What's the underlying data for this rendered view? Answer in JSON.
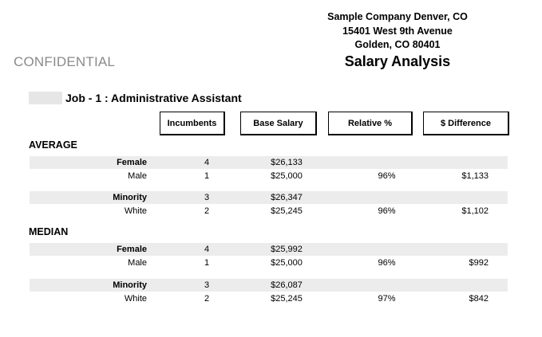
{
  "header": {
    "company_lines": [
      "Sample Company Denver, CO",
      "15401 West 9th Avenue",
      "Golden, CO 80401"
    ],
    "confidential": "CONFIDENTIAL",
    "title": "Salary Analysis"
  },
  "job": {
    "title": "Job - 1 : Administrative Assistant"
  },
  "columns": [
    "Incumbents",
    "Base Salary",
    "Relative %",
    "$ Difference"
  ],
  "sections": [
    {
      "title": "AVERAGE",
      "groups": [
        {
          "primary": {
            "label": "Female",
            "incumbents": "4",
            "base_salary": "$26,133"
          },
          "compare": {
            "label": "Male",
            "incumbents": "1",
            "base_salary": "$25,000",
            "relative": "96%",
            "difference": "$1,133"
          }
        },
        {
          "primary": {
            "label": "Minority",
            "incumbents": "3",
            "base_salary": "$26,347"
          },
          "compare": {
            "label": "White",
            "incumbents": "2",
            "base_salary": "$25,245",
            "relative": "96%",
            "difference": "$1,102"
          }
        }
      ]
    },
    {
      "title": "MEDIAN",
      "groups": [
        {
          "primary": {
            "label": "Female",
            "incumbents": "4",
            "base_salary": "$25,992"
          },
          "compare": {
            "label": "Male",
            "incumbents": "1",
            "base_salary": "$25,000",
            "relative": "96%",
            "difference": "$992"
          }
        },
        {
          "primary": {
            "label": "Minority",
            "incumbents": "3",
            "base_salary": "$26,087"
          },
          "compare": {
            "label": "White",
            "incumbents": "2",
            "base_salary": "$25,245",
            "relative": "97%",
            "difference": "$842"
          }
        }
      ]
    }
  ]
}
